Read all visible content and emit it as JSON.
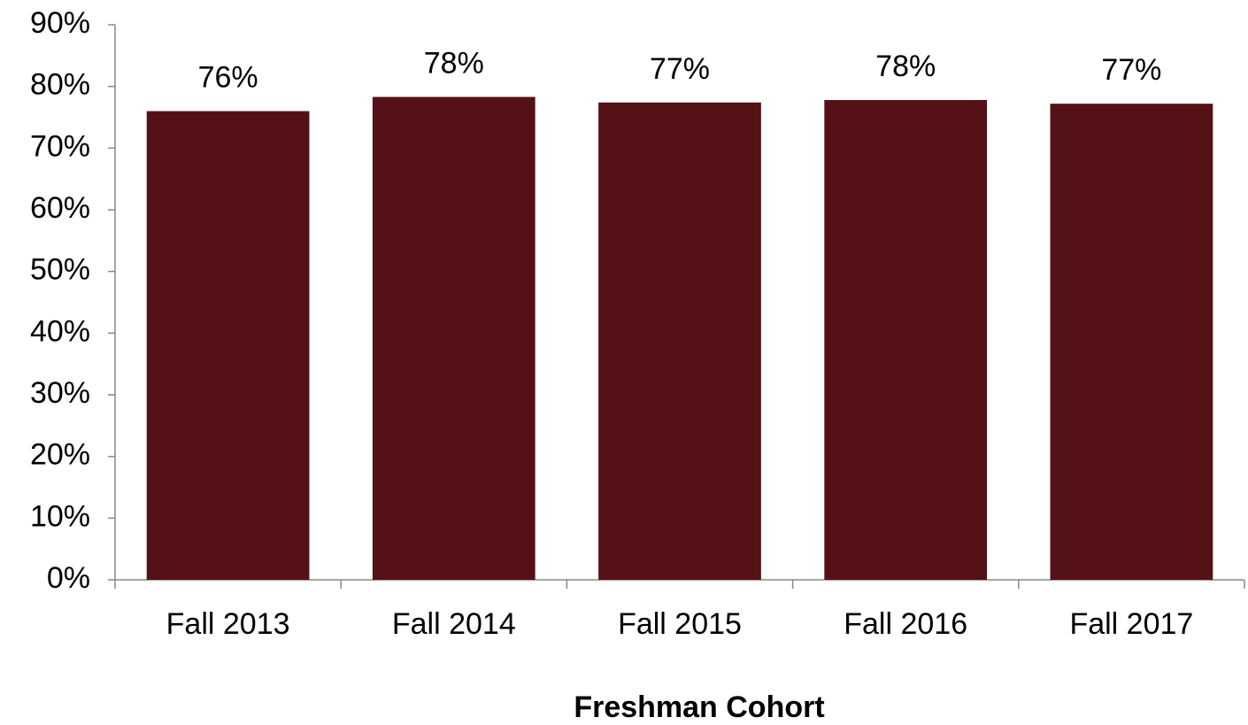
{
  "chart_data": {
    "type": "bar",
    "x_label": "Freshman Cohort",
    "categories": [
      "Fall 2013",
      "Fall 2014",
      "Fall 2015",
      "Fall 2016",
      "Fall 2017"
    ],
    "values": [
      76,
      78.3,
      77.4,
      77.8,
      77.2
    ],
    "value_labels": [
      "76%",
      "78%",
      "77%",
      "78%",
      "77%"
    ],
    "color": "#541216",
    "ylim": [
      0,
      90
    ],
    "yticks": [
      {
        "value": 0,
        "label": "0%"
      },
      {
        "value": 10,
        "label": "10%"
      },
      {
        "value": 20,
        "label": "20%"
      },
      {
        "value": 30,
        "label": "30%"
      },
      {
        "value": 40,
        "label": "40%"
      },
      {
        "value": 50,
        "label": "50%"
      },
      {
        "value": 60,
        "label": "60%"
      },
      {
        "value": 70,
        "label": "70%"
      },
      {
        "value": 80,
        "label": "80%"
      },
      {
        "value": 90,
        "label": "90%"
      }
    ],
    "grid": false
  }
}
